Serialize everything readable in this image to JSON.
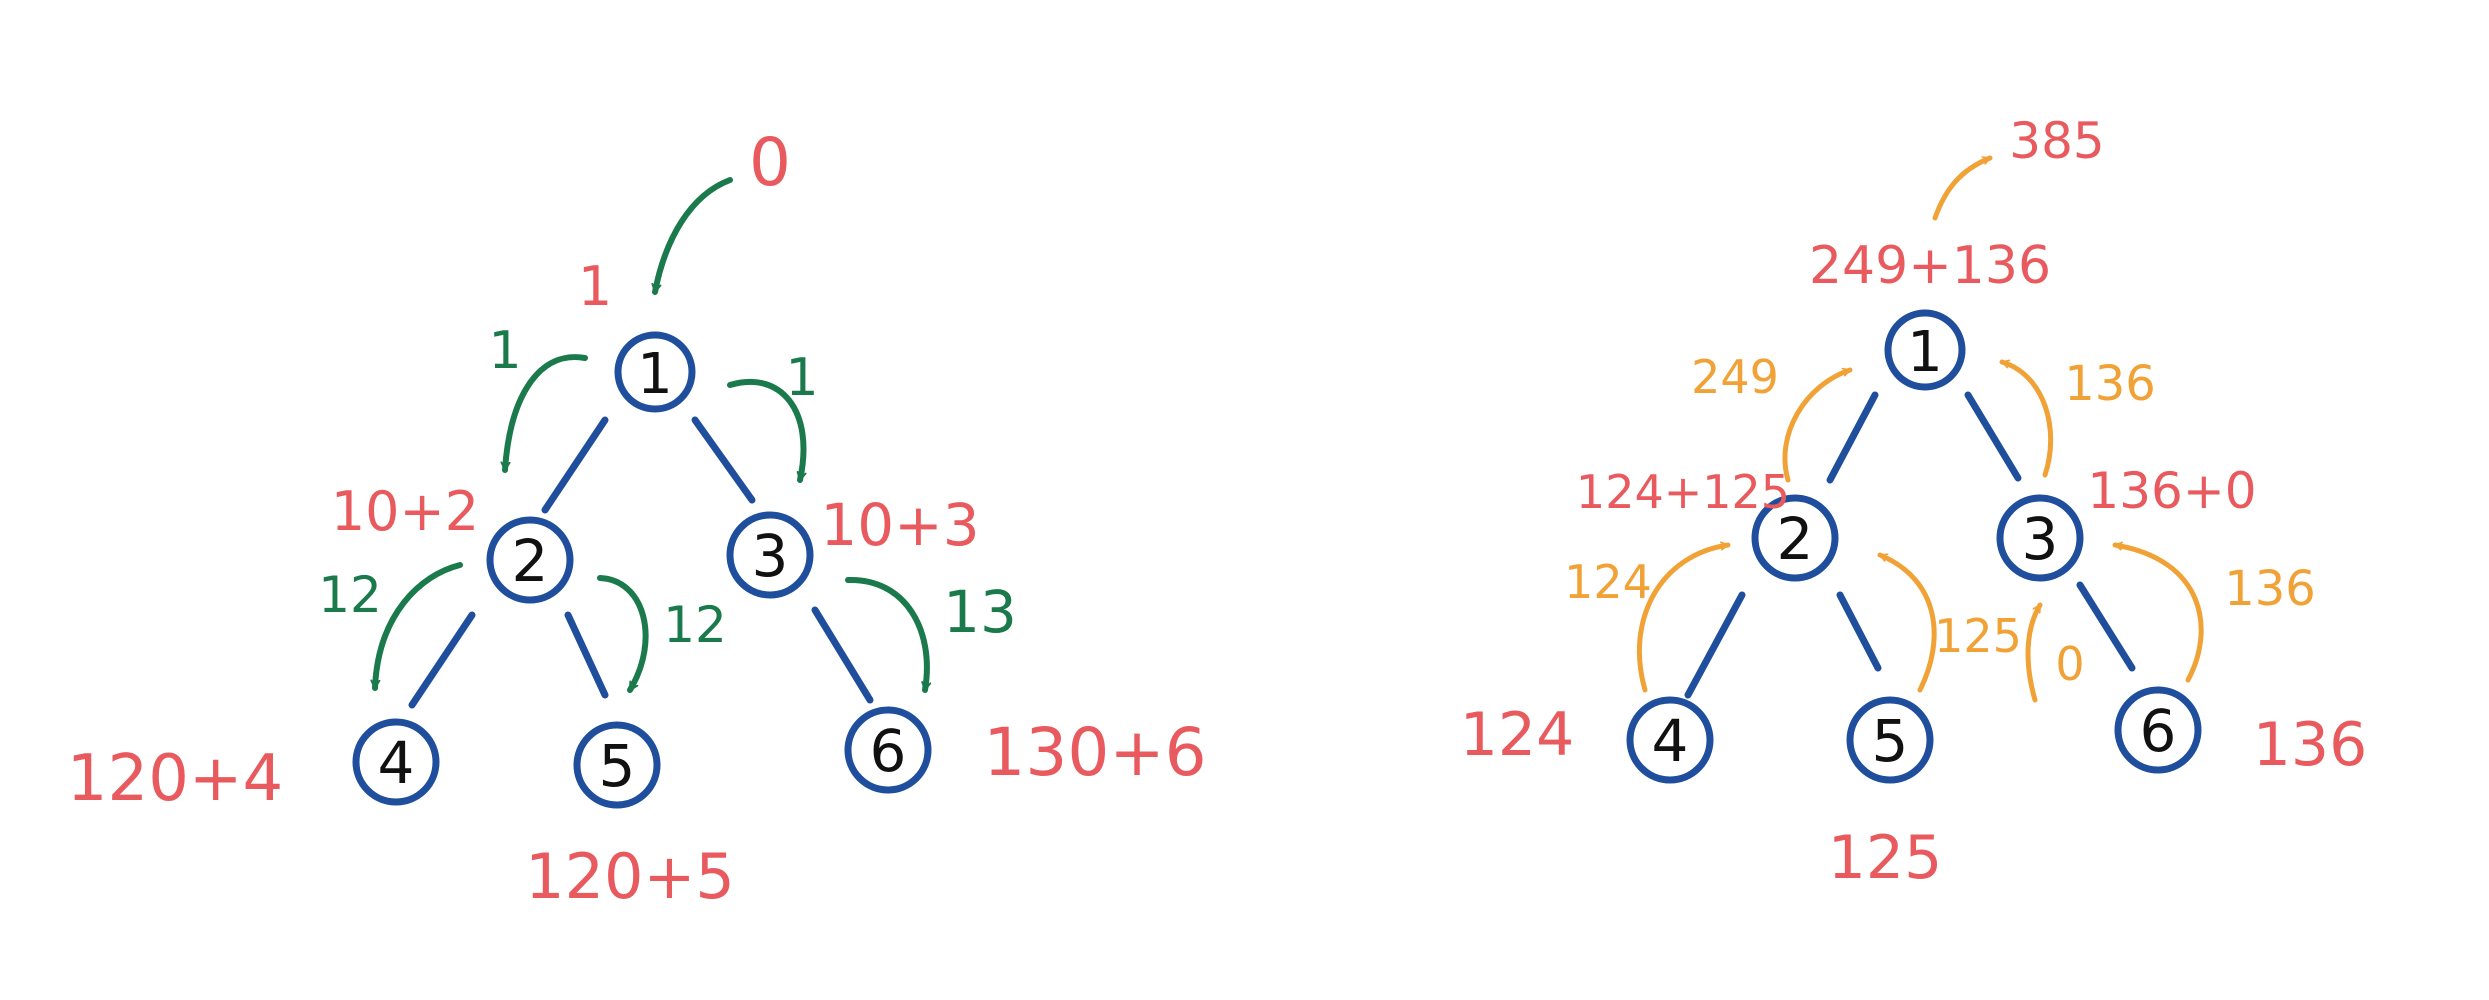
{
  "colors": {
    "node_stroke": "#1f4e9d",
    "edge": "#1f4e9d",
    "red": "#e85a5e",
    "green": "#1a7a4c",
    "orange": "#f1a236",
    "ink": "#111111"
  },
  "left_tree": {
    "nodes": [
      "1",
      "2",
      "3",
      "4",
      "5",
      "6"
    ],
    "labels": {
      "root_input": "0",
      "node1_value": "1",
      "node2_value": "10+2",
      "node3_value": "10+3",
      "node4_value": "120+4",
      "node5_value": "120+5",
      "node6_value": "130+6"
    },
    "arrow_labels": {
      "to_node2": "1",
      "to_node3": "1",
      "to_node4": "12",
      "to_node5": "12",
      "to_node6": "13"
    }
  },
  "right_tree": {
    "nodes": [
      "1",
      "2",
      "3",
      "4",
      "5",
      "6"
    ],
    "labels": {
      "root_output": "385",
      "node1_sum": "249+136",
      "node2_sum": "124+125",
      "node3_sum": "136+0",
      "node4_value": "124",
      "node5_value": "125",
      "node6_value": "136"
    },
    "arrow_labels": {
      "from_node2": "249",
      "from_node3": "136",
      "from_node4": "124",
      "from_node5": "125",
      "from_empty": "0",
      "from_node6": "136"
    }
  }
}
